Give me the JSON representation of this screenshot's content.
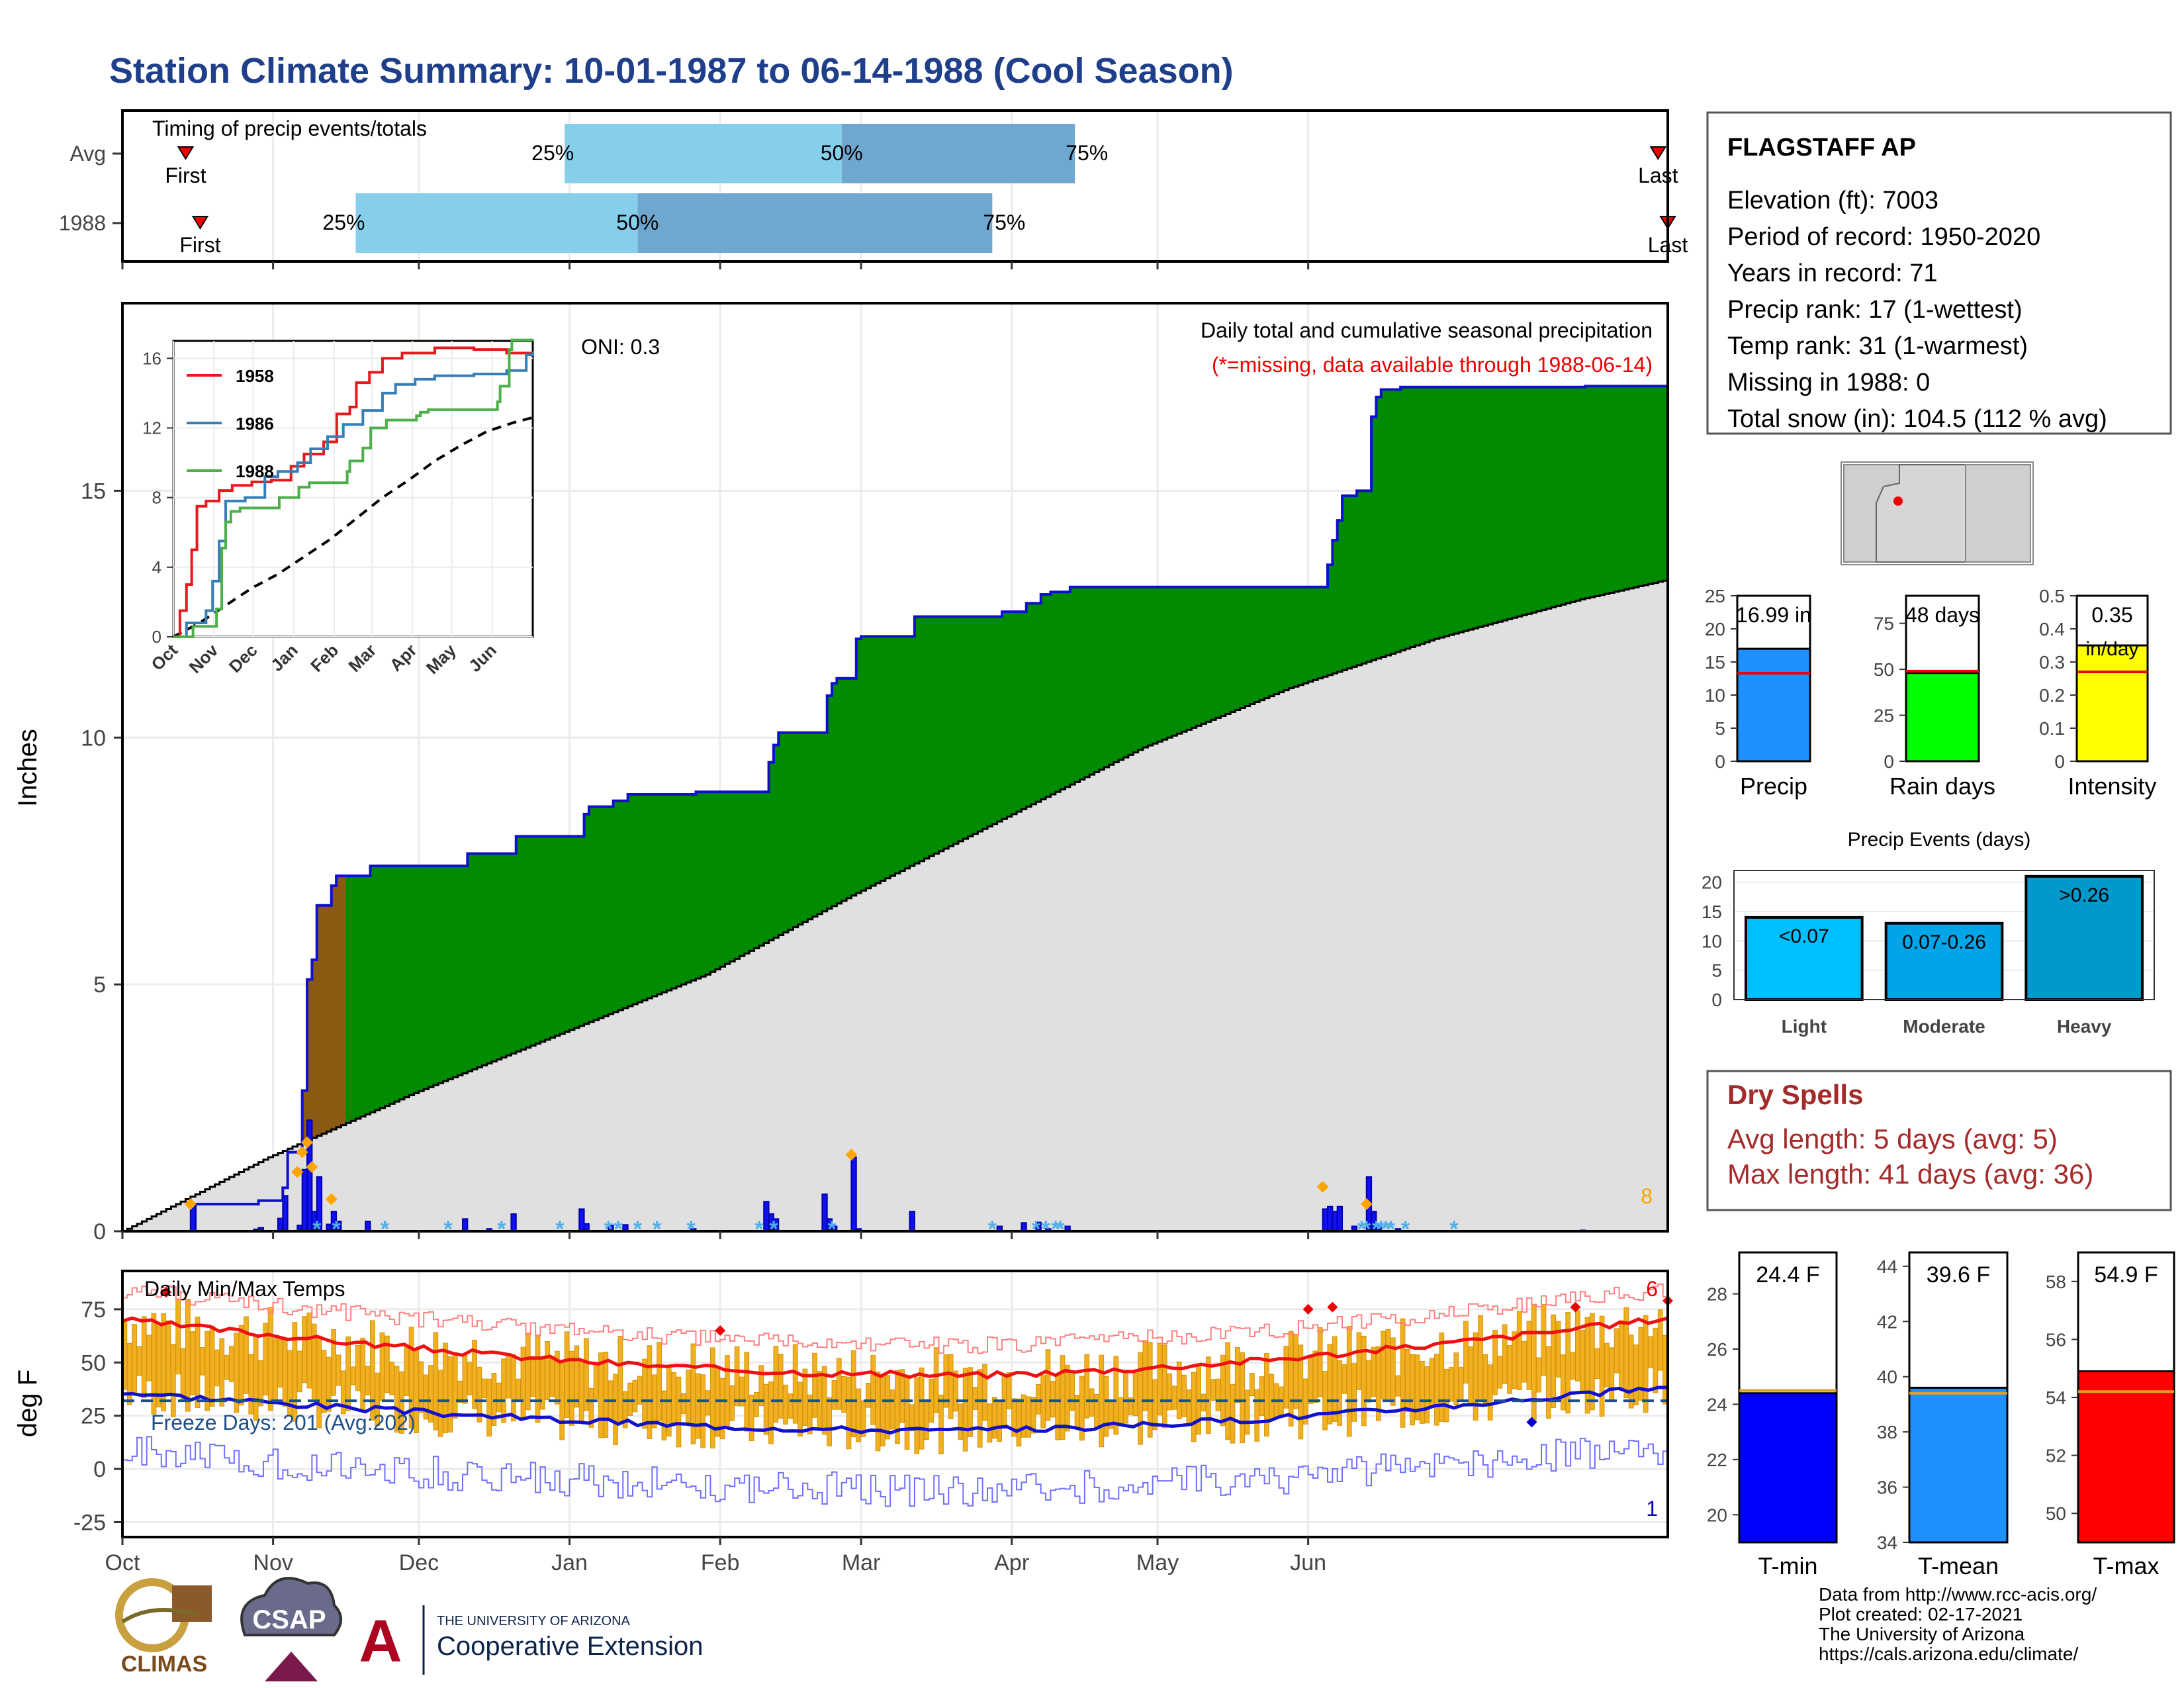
{
  "title": "Station Climate Summary: 10-01-1987 to 06-14-1988 (Cool Season)",
  "months": [
    "Oct",
    "Nov",
    "Dec",
    "Jan",
    "Feb",
    "Mar",
    "Apr",
    "May",
    "Jun"
  ],
  "timing": {
    "title": "Timing of precip events/totals",
    "rows": [
      {
        "label": "Avg",
        "first_label": "First",
        "last_label": "Last",
        "first_day": 13,
        "p25_day": 91,
        "p50_day": 148,
        "p75_day": 196,
        "last_day": 316
      },
      {
        "label": "1988",
        "first_label": "First",
        "last_label": "Last",
        "first_day": 16,
        "p25_day": 48,
        "p50_day": 106,
        "p75_day": 179,
        "last_day": 318
      }
    ],
    "pct_labels": [
      "25%",
      "50%",
      "75%"
    ]
  },
  "precip": {
    "ylabel": "Inches",
    "y_ticks": [
      0,
      5,
      10,
      15
    ],
    "ylim": [
      0,
      18.8
    ],
    "oni_label": "ONI: 0.3",
    "subtitle": "Daily total and cumulative seasonal precipitation",
    "missing_note": "(*=missing, data available through 1988-06-14)",
    "corner_count": "8",
    "cumulative_1988": [
      [
        0,
        0
      ],
      [
        14,
        0
      ],
      [
        15,
        0.55
      ],
      [
        27,
        0.55
      ],
      [
        28,
        0.62
      ],
      [
        32,
        0.62
      ],
      [
        33,
        0.88
      ],
      [
        34,
        1.6
      ],
      [
        36,
        1.6
      ],
      [
        37,
        2.85
      ],
      [
        38,
        5.1
      ],
      [
        39,
        5.5
      ],
      [
        40,
        6.6
      ],
      [
        42,
        6.6
      ],
      [
        43,
        7.0
      ],
      [
        44,
        7.2
      ],
      [
        50,
        7.2
      ],
      [
        51,
        7.4
      ],
      [
        70,
        7.4
      ],
      [
        71,
        7.65
      ],
      [
        75,
        7.65
      ],
      [
        76,
        7.65
      ],
      [
        80,
        7.65
      ],
      [
        81,
        8.0
      ],
      [
        94,
        8.0
      ],
      [
        95,
        8.45
      ],
      [
        96,
        8.6
      ],
      [
        100,
        8.6
      ],
      [
        101,
        8.72
      ],
      [
        103,
        8.72
      ],
      [
        104,
        8.85
      ],
      [
        117,
        8.85
      ],
      [
        118,
        8.9
      ],
      [
        132,
        8.9
      ],
      [
        133,
        9.5
      ],
      [
        134,
        9.85
      ],
      [
        135,
        10.1
      ],
      [
        136,
        10.1
      ],
      [
        144,
        10.1
      ],
      [
        145,
        10.85
      ],
      [
        146,
        11.1
      ],
      [
        147,
        11.2
      ],
      [
        150,
        11.2
      ],
      [
        151,
        12.0
      ],
      [
        152,
        12.05
      ],
      [
        162,
        12.05
      ],
      [
        163,
        12.45
      ],
      [
        165,
        12.45
      ],
      [
        180,
        12.45
      ],
      [
        181,
        12.55
      ],
      [
        185,
        12.55
      ],
      [
        186,
        12.72
      ],
      [
        188,
        12.72
      ],
      [
        189,
        12.9
      ],
      [
        191,
        12.95
      ],
      [
        194,
        12.95
      ],
      [
        195,
        13.05
      ],
      [
        247,
        13.05
      ],
      [
        248,
        13.5
      ],
      [
        249,
        14.0
      ],
      [
        250,
        14.4
      ],
      [
        251,
        14.9
      ],
      [
        252,
        14.9
      ],
      [
        253,
        14.9
      ],
      [
        254,
        15.0
      ],
      [
        255,
        15.0
      ],
      [
        256,
        15.0
      ],
      [
        257,
        16.5
      ],
      [
        258,
        16.9
      ],
      [
        259,
        17.05
      ],
      [
        260,
        17.05
      ],
      [
        262,
        17.05
      ],
      [
        263,
        17.1
      ],
      [
        300,
        17.1
      ],
      [
        301,
        17.12
      ],
      [
        318,
        17.12
      ]
    ],
    "daily_1988": [
      [
        14,
        0.55
      ],
      [
        27,
        0.04
      ],
      [
        28,
        0.07
      ],
      [
        32,
        0.26
      ],
      [
        33,
        0.72
      ],
      [
        36,
        0.12
      ],
      [
        37,
        1.25
      ],
      [
        38,
        2.25
      ],
      [
        39,
        0.4
      ],
      [
        40,
        1.1
      ],
      [
        42,
        0.14
      ],
      [
        43,
        0.4
      ],
      [
        44,
        0.2
      ],
      [
        50,
        0.2
      ],
      [
        70,
        0.25
      ],
      [
        75,
        0.05
      ],
      [
        80,
        0.35
      ],
      [
        94,
        0.45
      ],
      [
        95,
        0.15
      ],
      [
        100,
        0.12
      ],
      [
        103,
        0.13
      ],
      [
        117,
        0.05
      ],
      [
        132,
        0.6
      ],
      [
        133,
        0.35
      ],
      [
        134,
        0.25
      ],
      [
        144,
        0.75
      ],
      [
        145,
        0.25
      ],
      [
        146,
        0.1
      ],
      [
        150,
        1.5
      ],
      [
        151,
        0.05
      ],
      [
        162,
        0.4
      ],
      [
        180,
        0.1
      ],
      [
        185,
        0.17
      ],
      [
        188,
        0.18
      ],
      [
        190,
        0.05
      ],
      [
        194,
        0.1
      ],
      [
        247,
        0.45
      ],
      [
        248,
        0.5
      ],
      [
        249,
        0.4
      ],
      [
        250,
        0.5
      ],
      [
        253,
        0.1
      ],
      [
        256,
        1.1
      ],
      [
        257,
        0.4
      ],
      [
        258,
        0.15
      ],
      [
        262,
        0.05
      ],
      [
        300,
        0.02
      ]
    ],
    "snow_days": [
      40,
      44,
      54,
      67,
      78,
      90,
      100,
      102,
      106,
      110,
      117,
      131,
      134,
      146,
      179,
      188,
      190,
      192,
      193,
      255,
      256,
      258,
      259,
      260,
      261,
      264,
      274
    ],
    "highlight_days": [
      [
        14,
        0.55
      ],
      [
        36,
        1.2
      ],
      [
        37,
        1.6
      ],
      [
        38,
        1.8
      ],
      [
        39,
        1.3
      ],
      [
        43,
        0.65
      ],
      [
        150,
        1.55
      ],
      [
        247,
        0.9
      ],
      [
        256,
        0.55
      ]
    ],
    "normal_end": 13.2,
    "normal_at_day": [
      [
        0,
        0
      ],
      [
        30,
        1.5
      ],
      [
        60,
        2.8
      ],
      [
        90,
        4.0
      ],
      [
        120,
        5.2
      ],
      [
        150,
        6.8
      ],
      [
        180,
        8.3
      ],
      [
        210,
        9.8
      ],
      [
        240,
        11.0
      ],
      [
        270,
        12.0
      ],
      [
        300,
        12.8
      ],
      [
        318,
        13.2
      ]
    ]
  },
  "inset": {
    "y_ticks": [
      0,
      4,
      8,
      12,
      16
    ],
    "ylim": [
      0,
      17
    ],
    "legend": [
      {
        "name": "1958",
        "color": "#e41a1c"
      },
      {
        "name": "1986",
        "color": "#377eb8"
      },
      {
        "name": "1988",
        "color": "#4daf4a"
      }
    ],
    "series": [
      {
        "name": "1958",
        "color": "#e41a1c",
        "points": [
          [
            0,
            0
          ],
          [
            5,
            1.5
          ],
          [
            10,
            3
          ],
          [
            14,
            5
          ],
          [
            18,
            7.5
          ],
          [
            25,
            7.8
          ],
          [
            35,
            8.4
          ],
          [
            45,
            8.7
          ],
          [
            60,
            8.9
          ],
          [
            75,
            9.0
          ],
          [
            90,
            9.8
          ],
          [
            100,
            10.5
          ],
          [
            115,
            11.2
          ],
          [
            125,
            12.8
          ],
          [
            135,
            13.2
          ],
          [
            140,
            14.6
          ],
          [
            150,
            15.2
          ],
          [
            160,
            16
          ],
          [
            175,
            16.3
          ],
          [
            200,
            16.6
          ],
          [
            230,
            16.5
          ],
          [
            255,
            16.3
          ],
          [
            275,
            16.4
          ]
        ]
      },
      {
        "name": "1986",
        "color": "#377eb8",
        "points": [
          [
            0,
            0
          ],
          [
            10,
            0.8
          ],
          [
            25,
            1.5
          ],
          [
            30,
            3.2
          ],
          [
            35,
            5.5
          ],
          [
            40,
            7.8
          ],
          [
            55,
            8.0
          ],
          [
            70,
            9.2
          ],
          [
            80,
            9.5
          ],
          [
            95,
            10.0
          ],
          [
            105,
            10.8
          ],
          [
            118,
            11.5
          ],
          [
            130,
            12.2
          ],
          [
            145,
            13.0
          ],
          [
            160,
            14.0
          ],
          [
            170,
            14.5
          ],
          [
            185,
            14.8
          ],
          [
            200,
            15.0
          ],
          [
            230,
            15.1
          ],
          [
            255,
            15.3
          ],
          [
            270,
            16.2
          ],
          [
            275,
            16.4
          ]
        ]
      },
      {
        "name": "1988",
        "color": "#4daf4a",
        "points": [
          [
            0,
            0
          ],
          [
            15,
            0.6
          ],
          [
            33,
            1.6
          ],
          [
            37,
            5.1
          ],
          [
            40,
            6.6
          ],
          [
            44,
            7.2
          ],
          [
            51,
            7.4
          ],
          [
            81,
            8.0
          ],
          [
            96,
            8.6
          ],
          [
            104,
            8.85
          ],
          [
            133,
            9.5
          ],
          [
            135,
            10.1
          ],
          [
            145,
            10.85
          ],
          [
            151,
            12.0
          ],
          [
            163,
            12.45
          ],
          [
            186,
            12.7
          ],
          [
            189,
            12.9
          ],
          [
            195,
            13.05
          ],
          [
            248,
            13.5
          ],
          [
            250,
            14.4
          ],
          [
            257,
            16.5
          ],
          [
            259,
            17.05
          ],
          [
            275,
            17.1
          ]
        ]
      }
    ],
    "mean_points": [
      [
        0,
        0
      ],
      [
        20,
        0.8
      ],
      [
        40,
        1.8
      ],
      [
        60,
        2.8
      ],
      [
        80,
        3.6
      ],
      [
        100,
        4.6
      ],
      [
        120,
        5.6
      ],
      [
        140,
        6.8
      ],
      [
        160,
        8.0
      ],
      [
        180,
        9.0
      ],
      [
        200,
        10.1
      ],
      [
        220,
        11.0
      ],
      [
        240,
        11.8
      ],
      [
        260,
        12.3
      ],
      [
        275,
        12.6
      ]
    ]
  },
  "temps": {
    "title": "Daily Min/Max Temps",
    "ylabel": "deg F",
    "y_ticks": [
      -25,
      0,
      25,
      50,
      75
    ],
    "ylim": [
      -32,
      93
    ],
    "freeze_label": "Freeze Days: 201 (Avg:202)",
    "freeze_line": 32,
    "count_top": "6",
    "count_bottom": "1"
  },
  "station": {
    "name": "FLAGSTAFF AP",
    "lines": [
      "Elevation (ft): 7003",
      "Period of record: 1950-2020",
      "Years in record: 71",
      "Precip rank: 17 (1-wettest)",
      "Temp rank: 31 (1-warmest)",
      "Missing in 1988: 0",
      "Total snow (in): 104.5 (112 % avg)"
    ]
  },
  "summary_bars": [
    {
      "name": "Precip",
      "value": 16.99,
      "label": "16.99 in",
      "avg": 13.3,
      "ylim": [
        0,
        25
      ],
      "ticks": [
        0,
        5,
        10,
        15,
        20,
        25
      ],
      "color": "#1e90ff"
    },
    {
      "name": "Rain days",
      "value": 48,
      "label": "48 days",
      "avg": 49,
      "ylim": [
        0,
        90
      ],
      "ticks": [
        0,
        25,
        50,
        75
      ],
      "color": "#00ff00"
    },
    {
      "name": "Intensity",
      "value": 0.35,
      "label": "0.35",
      "label2": "in/day",
      "avg": 0.27,
      "ylim": [
        0,
        0.5
      ],
      "ticks": [
        0.0,
        0.1,
        0.2,
        0.3,
        0.4,
        0.5
      ],
      "color": "#ffff00"
    }
  ],
  "precip_events": {
    "title": "Precip Events (days)",
    "ylim": [
      0,
      22
    ],
    "ticks": [
      0,
      5,
      10,
      15,
      20
    ],
    "bars": [
      {
        "category": "Light",
        "label": "<0.07",
        "value": 14,
        "color": "#00bfff"
      },
      {
        "category": "Moderate",
        "label": "0.07-0.26",
        "value": 13,
        "color": "#00a5e8"
      },
      {
        "category": "Heavy",
        "label": ">0.26",
        "value": 21,
        "color": "#0099cc"
      }
    ]
  },
  "dry_spells": {
    "title": "Dry Spells",
    "avg_length": "Avg length: 5 days (avg: 5)",
    "max_length": "Max length: 41 days (avg: 36)"
  },
  "temp_bars": [
    {
      "name": "T-min",
      "value": 24.4,
      "label": "24.4 F",
      "avg": 24.5,
      "ylim": [
        19,
        29.5
      ],
      "ticks": [
        20,
        22,
        24,
        26,
        28
      ],
      "color": "#0000ff"
    },
    {
      "name": "T-mean",
      "value": 39.6,
      "label": "39.6 F",
      "avg": 39.4,
      "ylim": [
        34,
        44.5
      ],
      "ticks": [
        34,
        36,
        38,
        40,
        42,
        44
      ],
      "color": "#1e90ff"
    },
    {
      "name": "T-max",
      "value": 54.9,
      "label": "54.9 F",
      "avg": 54.2,
      "ylim": [
        49,
        59
      ],
      "ticks": [
        50,
        52,
        54,
        56,
        58
      ],
      "color": "#ff0000"
    }
  ],
  "footer": {
    "lines": [
      "Data from http://www.rcc-acis.org/",
      "Plot created: 02-17-2021",
      "The University of Arizona",
      "https://cals.arizona.edu/climate/"
    ],
    "logo1": "CLIMAS",
    "logo2": "CSAP",
    "logo3_small": "THE UNIVERSITY OF ARIZONA",
    "logo3_big": "Cooperative Extension"
  }
}
